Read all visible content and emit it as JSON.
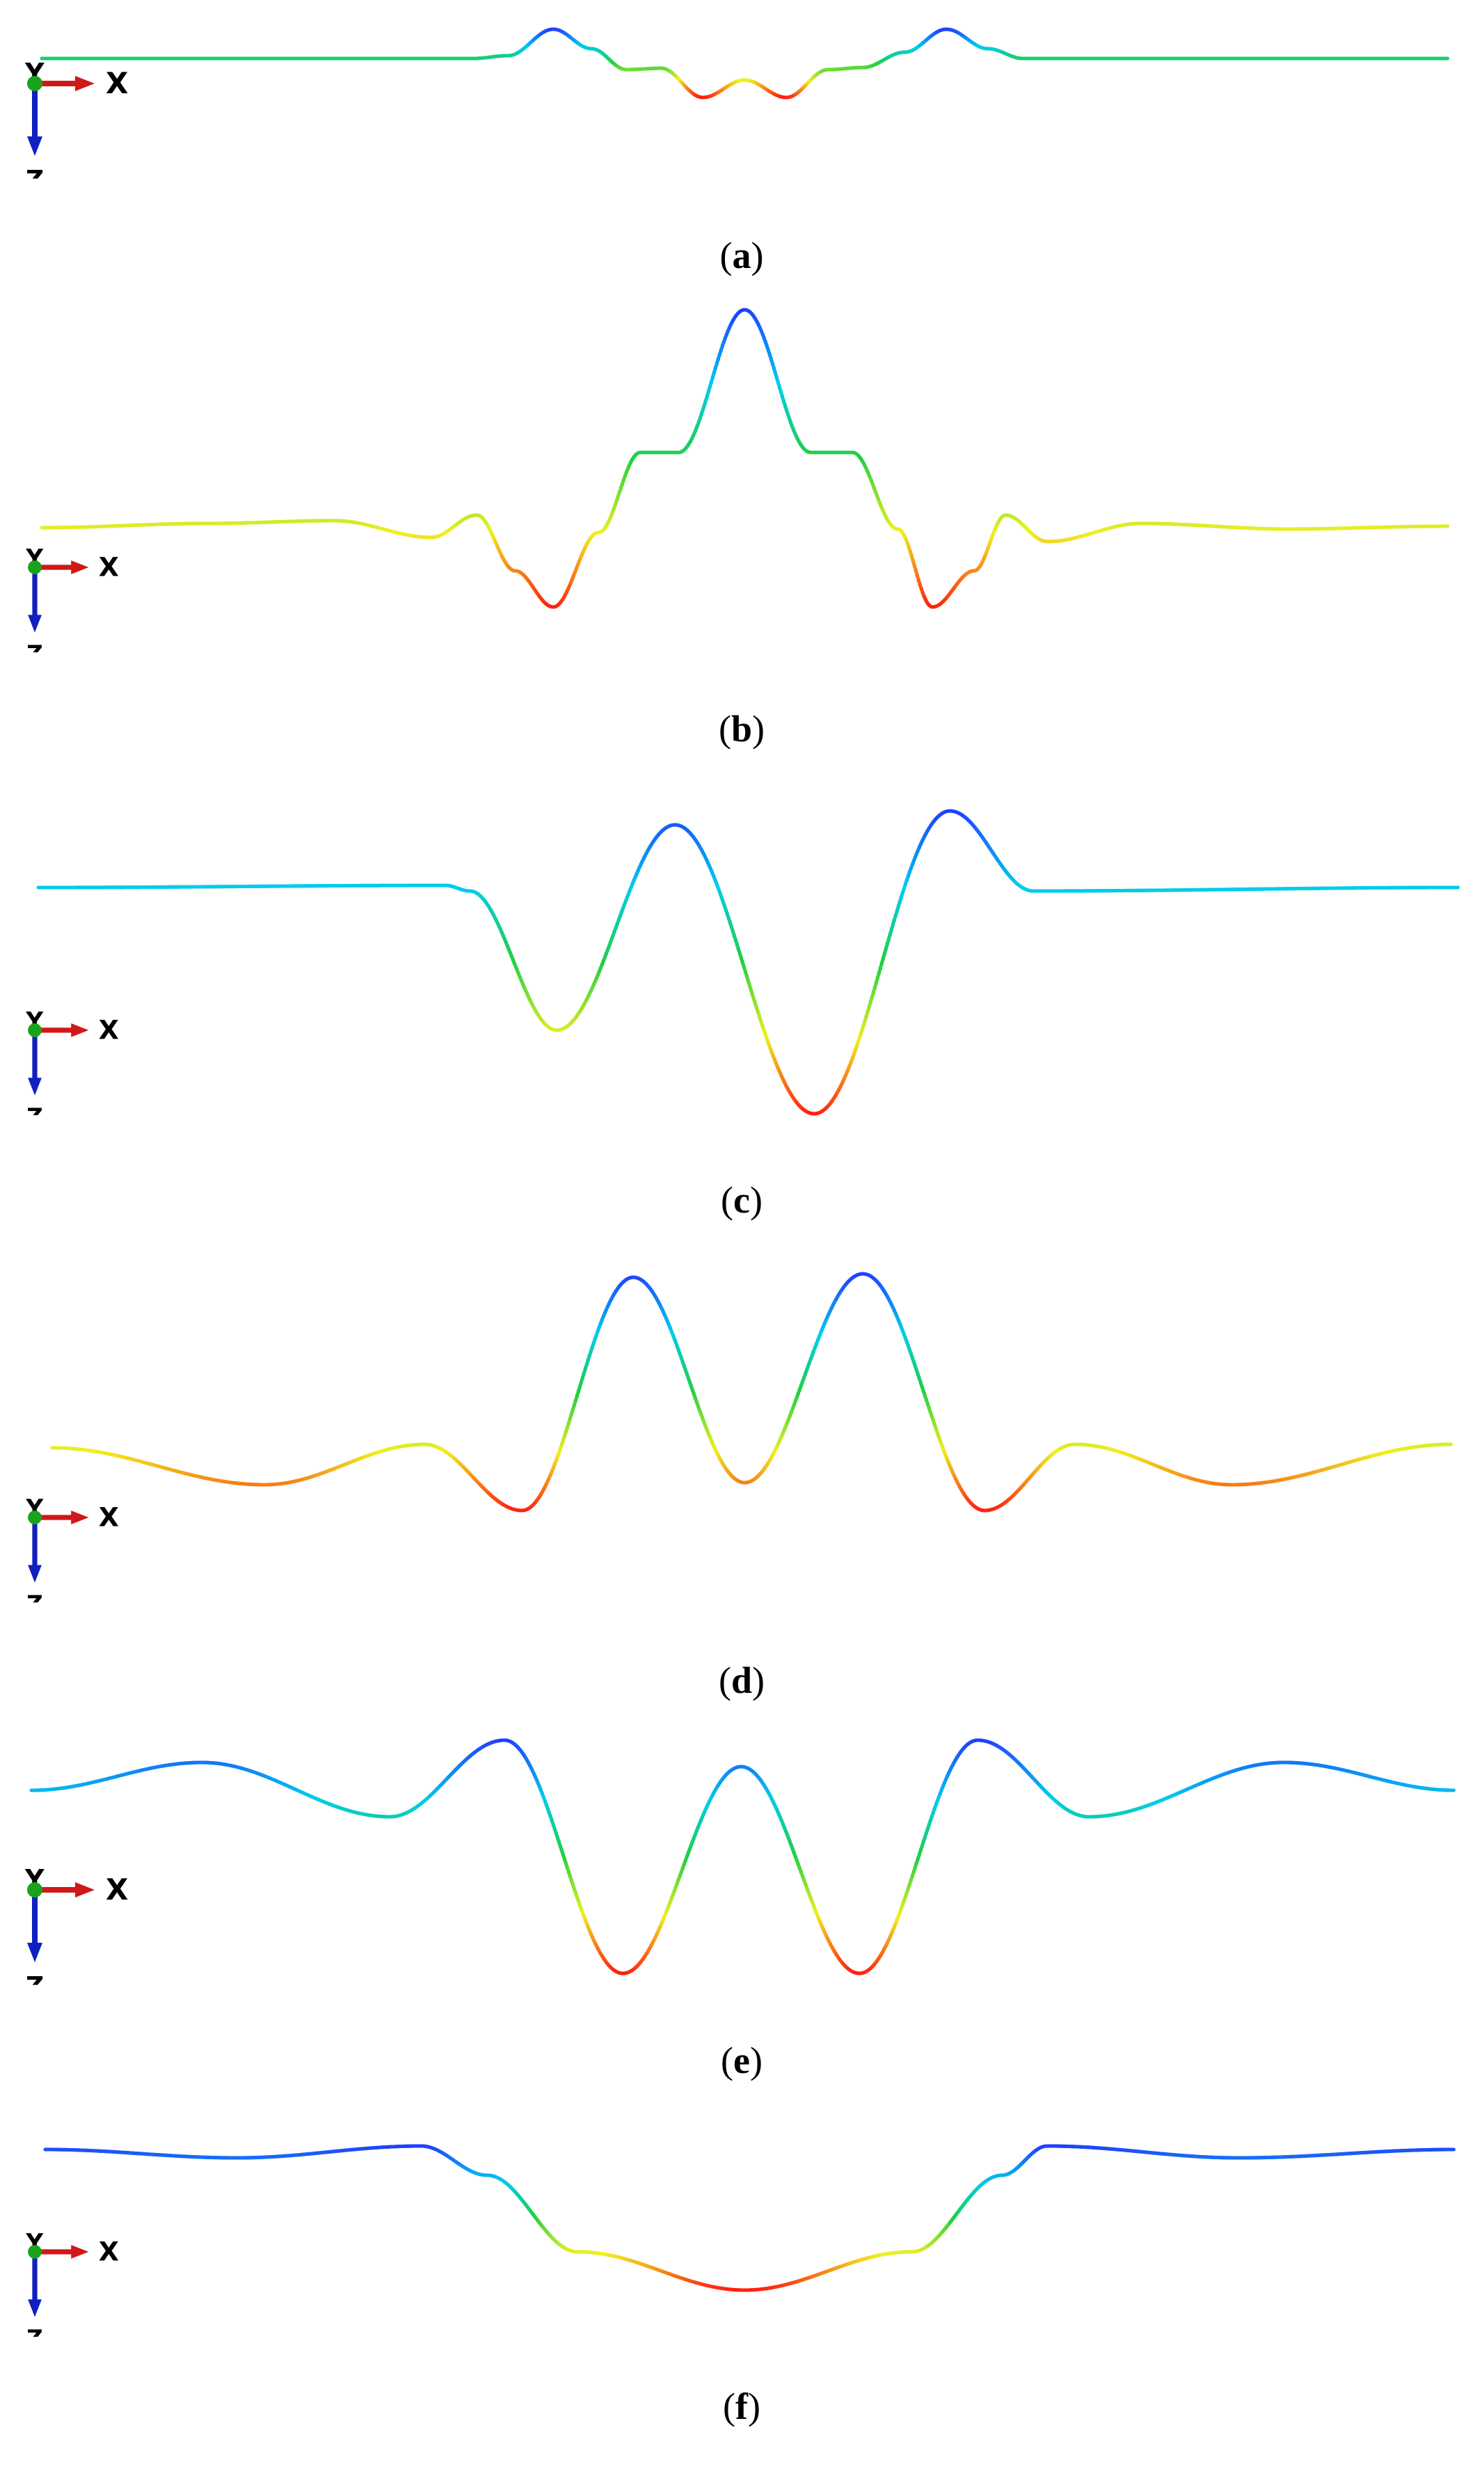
{
  "axis_triad": {
    "x_label": "X",
    "y_label": "Y",
    "z_label": "Z",
    "x_color": "#d01818",
    "y_color": "#1aa31a",
    "z_color": "#1020c0"
  },
  "colormap": [
    "#2040ff",
    "#00ccee",
    "#20d040",
    "#f0f020",
    "#ff2010"
  ],
  "panels": [
    {
      "letter": "a"
    },
    {
      "letter": "b"
    },
    {
      "letter": "c"
    },
    {
      "letter": "d"
    },
    {
      "letter": "e"
    },
    {
      "letter": "f"
    }
  ]
}
